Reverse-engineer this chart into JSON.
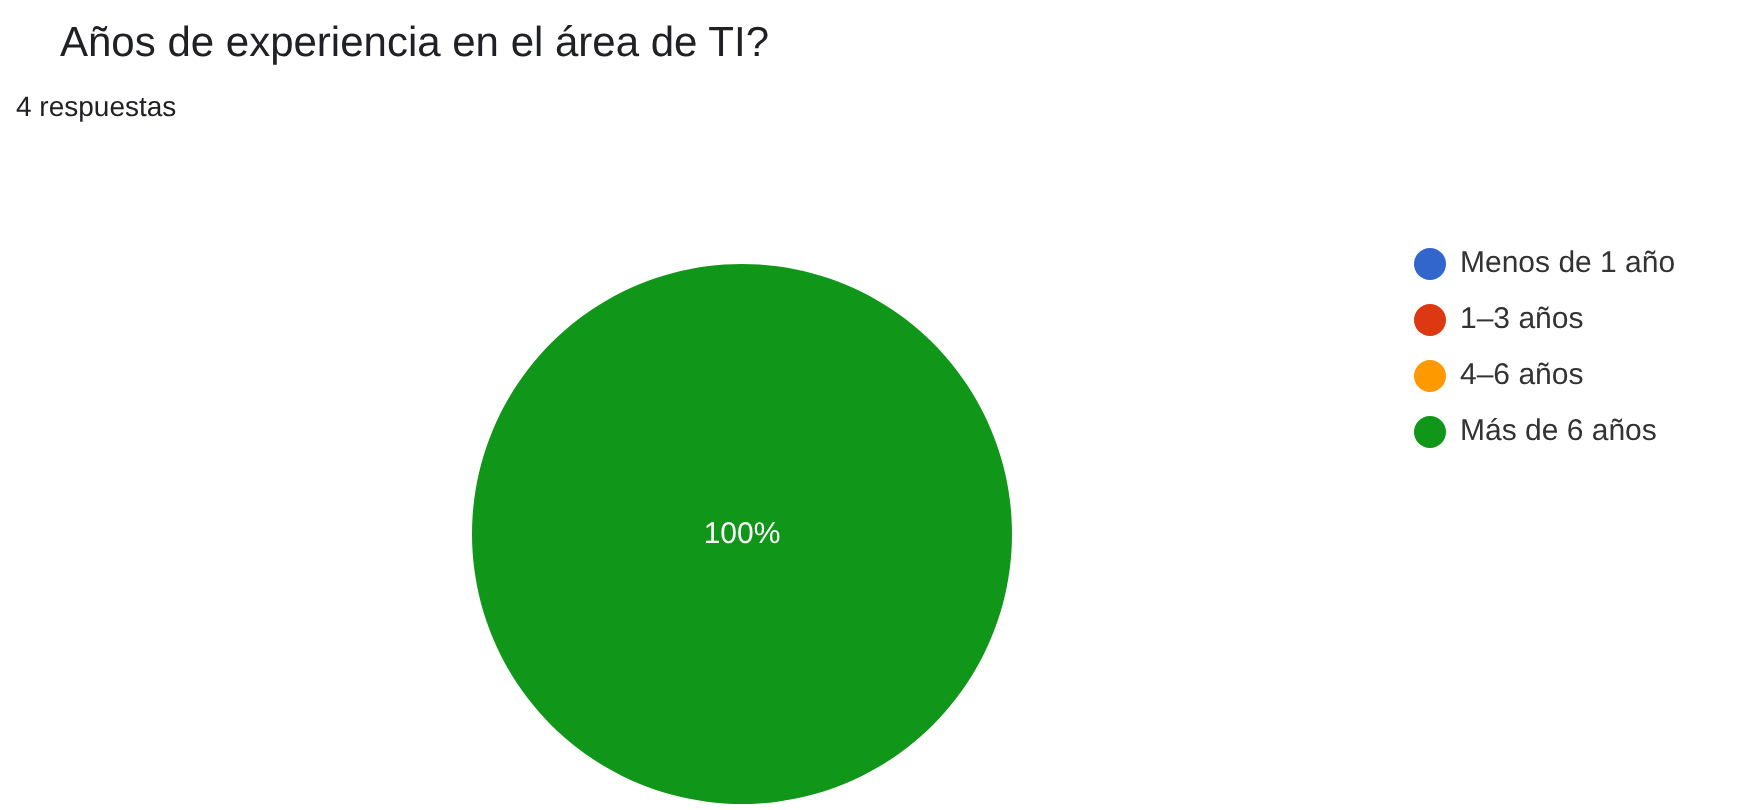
{
  "chart_data": {
    "type": "pie",
    "title": "Años de experiencia en el área de TI?",
    "subtitle": "4 respuestas",
    "categories": [
      "Menos de 1 año",
      "1–3 años",
      "4–6 años",
      "Más de 6 años"
    ],
    "values": [
      0,
      0,
      0,
      100
    ],
    "colors": [
      "#3366cc",
      "#dc3912",
      "#ff9900",
      "#109618"
    ],
    "value_labels": [
      null,
      null,
      null,
      "100%"
    ],
    "legend": "right"
  }
}
